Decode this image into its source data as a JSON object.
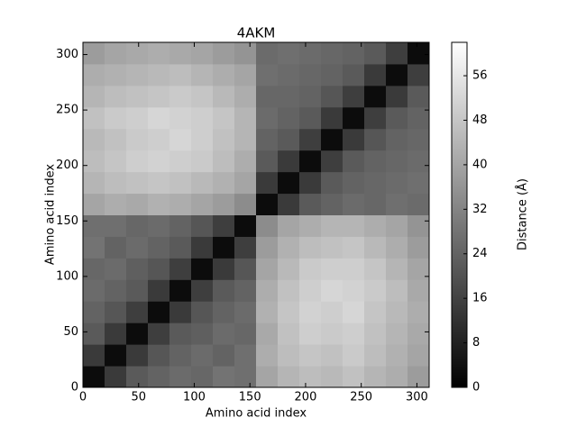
{
  "chart_data": {
    "type": "heatmap",
    "title": "4AKM",
    "x_label": "Amino acid index",
    "y_label": "Amino acid index",
    "colorbar_label": "Distance (Å)",
    "colormap": "gray",
    "xlim": [
      0,
      311
    ],
    "ylim": [
      0,
      311
    ],
    "xticks": [
      0,
      50,
      100,
      150,
      200,
      250,
      300
    ],
    "yticks": [
      0,
      50,
      100,
      150,
      200,
      250,
      300
    ],
    "clim": [
      0,
      62
    ],
    "colorbar_ticks": [
      0,
      8,
      16,
      24,
      32,
      40,
      48,
      56
    ],
    "z": [
      [
        3,
        14,
        22,
        24,
        26,
        25,
        28,
        27,
        40,
        44,
        46,
        45,
        47,
        44,
        42,
        38
      ],
      [
        14,
        3,
        14,
        21,
        24,
        26,
        24,
        27,
        42,
        46,
        48,
        47,
        49,
        46,
        43,
        40
      ],
      [
        22,
        14,
        3,
        15,
        22,
        23,
        26,
        25,
        41,
        47,
        50,
        49,
        50,
        47,
        44,
        41
      ],
      [
        24,
        21,
        15,
        3,
        14,
        21,
        24,
        26,
        43,
        48,
        51,
        50,
        52,
        48,
        45,
        42
      ],
      [
        26,
        24,
        22,
        14,
        3,
        15,
        22,
        24,
        42,
        47,
        50,
        52,
        51,
        49,
        46,
        41
      ],
      [
        25,
        26,
        23,
        21,
        15,
        3,
        14,
        21,
        40,
        45,
        49,
        50,
        50,
        48,
        44,
        40
      ],
      [
        28,
        24,
        26,
        24,
        22,
        14,
        3,
        15,
        38,
        43,
        46,
        47,
        48,
        45,
        42,
        38
      ],
      [
        27,
        27,
        25,
        26,
        24,
        21,
        15,
        3,
        34,
        40,
        42,
        44,
        44,
        42,
        40,
        36
      ],
      [
        40,
        42,
        41,
        43,
        42,
        40,
        38,
        34,
        3,
        14,
        22,
        24,
        26,
        25,
        27,
        26
      ],
      [
        44,
        46,
        47,
        48,
        47,
        45,
        43,
        40,
        14,
        3,
        14,
        22,
        24,
        25,
        26,
        27
      ],
      [
        46,
        48,
        50,
        51,
        50,
        49,
        46,
        42,
        22,
        14,
        3,
        15,
        22,
        24,
        25,
        26
      ],
      [
        45,
        47,
        49,
        50,
        52,
        50,
        47,
        44,
        24,
        22,
        15,
        3,
        14,
        21,
        24,
        25
      ],
      [
        47,
        49,
        50,
        52,
        51,
        50,
        48,
        44,
        26,
        24,
        22,
        14,
        3,
        15,
        22,
        24
      ],
      [
        44,
        46,
        47,
        48,
        49,
        48,
        45,
        42,
        25,
        25,
        24,
        21,
        15,
        3,
        14,
        22
      ],
      [
        42,
        43,
        44,
        45,
        46,
        44,
        42,
        40,
        27,
        26,
        25,
        24,
        22,
        14,
        3,
        15
      ],
      [
        38,
        40,
        41,
        42,
        41,
        40,
        38,
        36,
        26,
        27,
        26,
        25,
        24,
        22,
        15,
        3
      ]
    ]
  }
}
